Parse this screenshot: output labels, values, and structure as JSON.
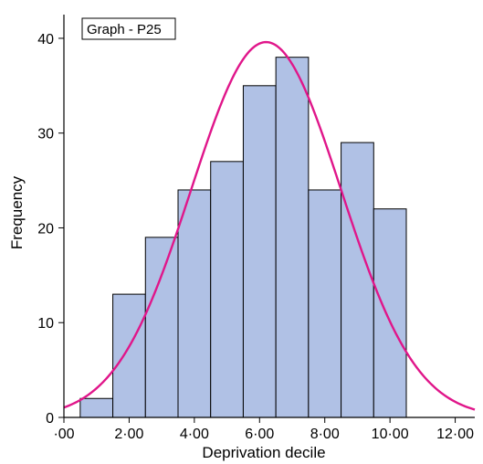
{
  "chart_data": {
    "type": "bar",
    "legend_label": "Graph - P25",
    "xlabel": "Deprivation decile",
    "ylabel": "Frequency",
    "xlim": [
      0,
      12.6
    ],
    "ylim": [
      0,
      42.5
    ],
    "x_ticks": [
      {
        "value": 0,
        "label": "·00"
      },
      {
        "value": 2,
        "label": "2·00"
      },
      {
        "value": 4,
        "label": "4·00"
      },
      {
        "value": 6,
        "label": "6·00"
      },
      {
        "value": 8,
        "label": "8·00"
      },
      {
        "value": 10,
        "label": "10·00"
      },
      {
        "value": 12,
        "label": "12·00"
      }
    ],
    "y_ticks": [
      {
        "value": 0,
        "label": "0"
      },
      {
        "value": 10,
        "label": "10"
      },
      {
        "value": 20,
        "label": "20"
      },
      {
        "value": 30,
        "label": "30"
      },
      {
        "value": 40,
        "label": "40"
      }
    ],
    "bins": [
      {
        "x0": 0.5,
        "x1": 1.5,
        "value": 2
      },
      {
        "x0": 1.5,
        "x1": 2.5,
        "value": 13
      },
      {
        "x0": 2.5,
        "x1": 3.5,
        "value": 19
      },
      {
        "x0": 3.5,
        "x1": 4.5,
        "value": 24
      },
      {
        "x0": 4.5,
        "x1": 5.5,
        "value": 27
      },
      {
        "x0": 5.5,
        "x1": 6.5,
        "value": 35
      },
      {
        "x0": 6.5,
        "x1": 7.5,
        "value": 38
      },
      {
        "x0": 7.5,
        "x1": 8.5,
        "value": 24
      },
      {
        "x0": 8.5,
        "x1": 9.5,
        "value": 29
      },
      {
        "x0": 9.5,
        "x1": 10.5,
        "value": 22
      }
    ],
    "normal_curve": {
      "mean": 6.2,
      "sd": 2.3,
      "peak": 39.6
    },
    "colors": {
      "bar_fill": "#b0c1e5",
      "bar_stroke": "#000000",
      "curve": "#e0168a",
      "axis": "#000000"
    },
    "grid": false,
    "legend_placement": "top-left"
  }
}
